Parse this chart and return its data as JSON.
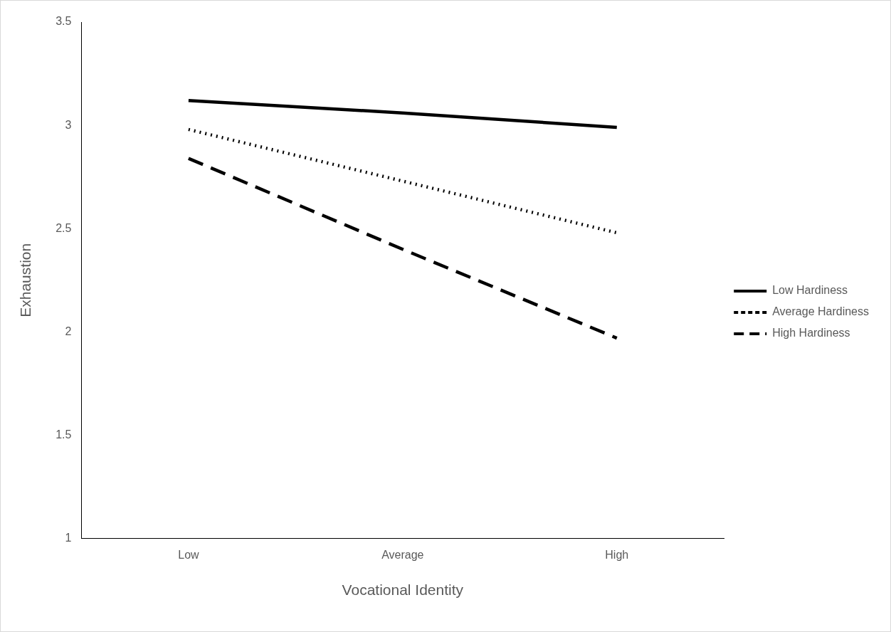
{
  "chart_data": {
    "type": "line",
    "xlabel": "Vocational Identity",
    "ylabel": "Exhaustion",
    "categories": [
      "Low",
      "Average",
      "High"
    ],
    "series": [
      {
        "name": "Low Hardiness",
        "color": "#000000",
        "line_style": "solid",
        "values": [
          3.12,
          3.06,
          2.99
        ]
      },
      {
        "name": "Average Hardiness",
        "color": "#000000",
        "line_style": "dotted",
        "values": [
          2.98,
          2.73,
          2.48
        ]
      },
      {
        "name": "High Hardiness",
        "color": "#000000",
        "line_style": "dashed",
        "values": [
          2.84,
          2.4,
          1.97
        ]
      }
    ],
    "ylim": [
      1,
      3.5
    ],
    "yticks": [
      1,
      1.5,
      2,
      2.5,
      3,
      3.5
    ],
    "grid": false,
    "legend": "right",
    "marker": "none"
  }
}
